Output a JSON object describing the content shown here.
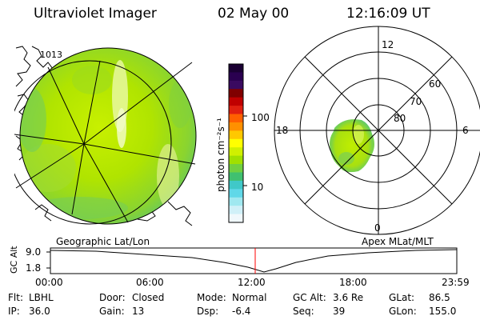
{
  "header": {
    "instrument": "Ultraviolet Imager",
    "date": "02 May 00",
    "time": "12:16:09 UT"
  },
  "colorbar": {
    "unit_label": "photon cm⁻²s⁻¹",
    "ticks": [
      "100",
      "10"
    ],
    "scale": "log",
    "colors": [
      "#1a0033",
      "#2a0050",
      "#3a0a60",
      "#800000",
      "#c00000",
      "#e02010",
      "#ff6000",
      "#ff9000",
      "#ffc800",
      "#ffff00",
      "#d0f000",
      "#a0e000",
      "#70d040",
      "#40c070",
      "#40c8c8",
      "#60d8e8",
      "#a0e8f0",
      "#d0f0f8",
      "#f0f8fc"
    ]
  },
  "geo_panel": {
    "label": "Geographic Lat/Lon",
    "map_fragment_label": "1013"
  },
  "polar_panel": {
    "label": "Apex MLat/MLT",
    "mlt_labels": {
      "top": "12",
      "left": "18",
      "right": "6",
      "bottom": "0"
    },
    "lat_labels": [
      "60",
      "70",
      "80"
    ]
  },
  "timeline": {
    "y_axis_label": "GC Alt",
    "y_ticks": [
      "9.0",
      "1.8"
    ],
    "x_ticks": [
      "00:00",
      "06:00",
      "12:00",
      "18:00",
      "23:59"
    ],
    "marker_color": "#ff0000"
  },
  "info": {
    "row1": [
      {
        "key": "Flt:",
        "value": "LBHL"
      },
      {
        "key": "Door:",
        "value": "Closed"
      },
      {
        "key": "Mode:",
        "value": "Normal"
      },
      {
        "key": "GC Alt:",
        "value": "3.6 Re"
      },
      {
        "key": "GLat:",
        "value": "86.5"
      }
    ],
    "row2": [
      {
        "key": "IP:",
        "value": "36.0"
      },
      {
        "key": "Gain:",
        "value": "13"
      },
      {
        "key": "Dsp:",
        "value": "-6.4"
      },
      {
        "key": "Seq:",
        "value": "39"
      },
      {
        "key": "GLon:",
        "value": "155.0"
      }
    ]
  }
}
